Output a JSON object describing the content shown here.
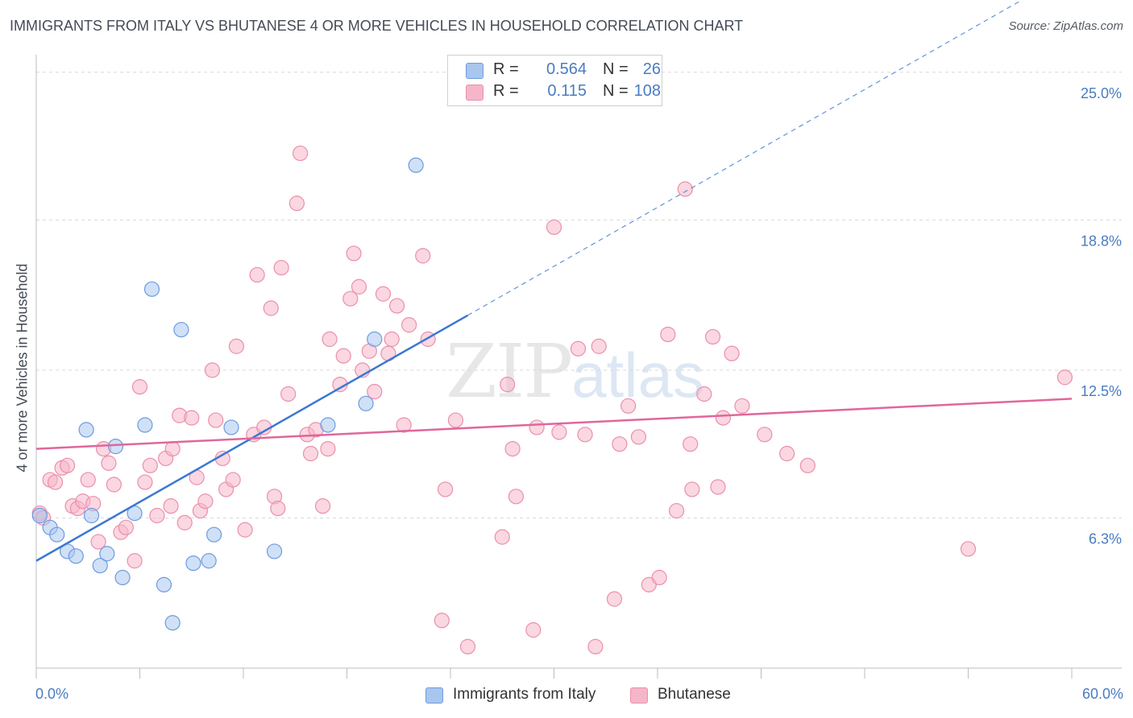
{
  "title": "IMMIGRANTS FROM ITALY VS BHUTANESE 4 OR MORE VEHICLES IN HOUSEHOLD CORRELATION CHART",
  "source": "Source: ZipAtlas.com",
  "watermark": {
    "zip": "ZIP",
    "atlas": "atlas"
  },
  "legend": {
    "r_label": "R =",
    "n_label": "N =",
    "italy": {
      "r": "0.564",
      "n": "26"
    },
    "bhutanese": {
      "r": "0.115",
      "n": "108"
    }
  },
  "bottom_legend": {
    "italy": "Immigrants from Italy",
    "bhutanese": "Bhutanese"
  },
  "colors": {
    "italy_fill": "#a9c6ee",
    "italy_stroke": "#6d9be0",
    "italy_line": "#3b78d4",
    "bhutanese_fill": "#f5b6c9",
    "bhutanese_stroke": "#eb8fac",
    "bhutanese_line": "#e0679a",
    "grid": "#d9d9d9",
    "axis_text": "#4a7cc2"
  },
  "chart_data": {
    "type": "scatter",
    "title": "IMMIGRANTS FROM ITALY VS BHUTANESE 4 OR MORE VEHICLES IN HOUSEHOLD CORRELATION CHART",
    "xlabel": "",
    "ylabel": "4 or more Vehicles in Household",
    "x_tick_labels": [
      "0.0%",
      "60.0%"
    ],
    "y_tick_labels": [
      "25.0%",
      "18.8%",
      "12.5%",
      "6.3%"
    ],
    "y_ticks": [
      25.0,
      18.8,
      12.5,
      6.3
    ],
    "xlim": [
      0,
      60
    ],
    "ylim": [
      0,
      25.6
    ],
    "grid": true,
    "legend_position": "top-center",
    "series": [
      {
        "name": "Immigrants from Italy",
        "r": 0.564,
        "n": 26,
        "trend": {
          "x0": 0,
          "y0": 4.5,
          "x1": 25,
          "y1": 14.8,
          "dashed_to_x": 60
        },
        "points": [
          [
            0.2,
            6.4
          ],
          [
            0.8,
            5.9
          ],
          [
            1.2,
            5.6
          ],
          [
            1.8,
            4.9
          ],
          [
            2.3,
            4.7
          ],
          [
            2.9,
            10.0
          ],
          [
            3.2,
            6.4
          ],
          [
            3.7,
            4.3
          ],
          [
            4.1,
            4.8
          ],
          [
            4.6,
            9.3
          ],
          [
            5.0,
            3.8
          ],
          [
            5.7,
            6.5
          ],
          [
            6.3,
            10.2
          ],
          [
            6.7,
            15.9
          ],
          [
            7.4,
            3.5
          ],
          [
            7.9,
            1.9
          ],
          [
            8.4,
            14.2
          ],
          [
            9.1,
            4.4
          ],
          [
            10.0,
            4.5
          ],
          [
            10.3,
            5.6
          ],
          [
            11.3,
            10.1
          ],
          [
            13.8,
            4.9
          ],
          [
            16.9,
            10.2
          ],
          [
            19.1,
            11.1
          ],
          [
            19.6,
            13.8
          ],
          [
            22.0,
            21.1
          ]
        ]
      },
      {
        "name": "Bhutanese",
        "r": 0.115,
        "n": 108,
        "trend": {
          "x0": 0,
          "y0": 9.2,
          "x1": 60,
          "y1": 11.3
        },
        "points": [
          [
            0.2,
            6.5
          ],
          [
            0.8,
            7.9
          ],
          [
            1.1,
            7.8
          ],
          [
            1.5,
            8.4
          ],
          [
            1.8,
            8.5
          ],
          [
            2.1,
            6.8
          ],
          [
            2.4,
            6.7
          ],
          [
            2.7,
            7.0
          ],
          [
            3.0,
            7.9
          ],
          [
            3.3,
            6.9
          ],
          [
            3.6,
            5.3
          ],
          [
            3.9,
            9.2
          ],
          [
            4.2,
            8.6
          ],
          [
            4.5,
            7.7
          ],
          [
            4.9,
            5.7
          ],
          [
            5.2,
            5.9
          ],
          [
            5.7,
            4.5
          ],
          [
            6.0,
            11.8
          ],
          [
            6.3,
            7.8
          ],
          [
            6.6,
            8.5
          ],
          [
            7.0,
            6.4
          ],
          [
            7.5,
            8.8
          ],
          [
            7.8,
            6.8
          ],
          [
            7.9,
            9.2
          ],
          [
            8.3,
            10.6
          ],
          [
            8.6,
            6.1
          ],
          [
            9.0,
            10.5
          ],
          [
            9.3,
            8.0
          ],
          [
            9.5,
            6.6
          ],
          [
            9.8,
            7.0
          ],
          [
            10.2,
            12.5
          ],
          [
            10.4,
            10.4
          ],
          [
            10.8,
            8.8
          ],
          [
            11.0,
            7.5
          ],
          [
            11.4,
            7.9
          ],
          [
            11.6,
            13.5
          ],
          [
            12.1,
            5.8
          ],
          [
            12.6,
            9.8
          ],
          [
            12.8,
            16.5
          ],
          [
            13.2,
            10.1
          ],
          [
            13.6,
            15.1
          ],
          [
            13.8,
            7.2
          ],
          [
            14.0,
            6.7
          ],
          [
            14.2,
            16.8
          ],
          [
            14.6,
            11.5
          ],
          [
            15.1,
            19.5
          ],
          [
            15.3,
            21.6
          ],
          [
            15.7,
            9.8
          ],
          [
            15.9,
            9.0
          ],
          [
            16.2,
            10.0
          ],
          [
            16.6,
            6.8
          ],
          [
            16.9,
            9.2
          ],
          [
            17.0,
            13.8
          ],
          [
            17.6,
            11.9
          ],
          [
            17.8,
            13.1
          ],
          [
            18.2,
            15.5
          ],
          [
            18.4,
            17.4
          ],
          [
            18.7,
            16.0
          ],
          [
            18.9,
            12.5
          ],
          [
            19.3,
            13.3
          ],
          [
            19.6,
            11.6
          ],
          [
            20.1,
            15.7
          ],
          [
            20.4,
            13.2
          ],
          [
            20.6,
            13.8
          ],
          [
            20.9,
            15.2
          ],
          [
            21.3,
            10.2
          ],
          [
            21.6,
            14.4
          ],
          [
            22.4,
            17.3
          ],
          [
            22.7,
            13.8
          ],
          [
            23.5,
            2.0
          ],
          [
            23.7,
            7.5
          ],
          [
            24.3,
            10.4
          ],
          [
            25.0,
            0.9
          ],
          [
            27.0,
            5.5
          ],
          [
            27.3,
            11.9
          ],
          [
            27.6,
            9.2
          ],
          [
            27.8,
            7.2
          ],
          [
            28.8,
            1.6
          ],
          [
            29.0,
            10.1
          ],
          [
            30.0,
            18.5
          ],
          [
            30.3,
            9.9
          ],
          [
            31.4,
            13.4
          ],
          [
            31.8,
            9.8
          ],
          [
            32.4,
            0.9
          ],
          [
            32.6,
            13.5
          ],
          [
            33.5,
            2.9
          ],
          [
            33.8,
            9.4
          ],
          [
            34.3,
            11.0
          ],
          [
            34.9,
            9.7
          ],
          [
            35.5,
            3.5
          ],
          [
            36.1,
            3.8
          ],
          [
            36.6,
            14.0
          ],
          [
            37.1,
            6.6
          ],
          [
            37.6,
            20.1
          ],
          [
            37.9,
            9.4
          ],
          [
            38.0,
            7.5
          ],
          [
            38.7,
            11.5
          ],
          [
            39.2,
            13.9
          ],
          [
            39.5,
            7.6
          ],
          [
            39.8,
            10.5
          ],
          [
            40.3,
            13.2
          ],
          [
            40.9,
            11.0
          ],
          [
            42.2,
            9.8
          ],
          [
            43.5,
            9.0
          ],
          [
            44.7,
            8.5
          ],
          [
            54.0,
            5.0
          ],
          [
            59.6,
            12.2
          ],
          [
            0.4,
            6.3
          ]
        ]
      }
    ]
  }
}
